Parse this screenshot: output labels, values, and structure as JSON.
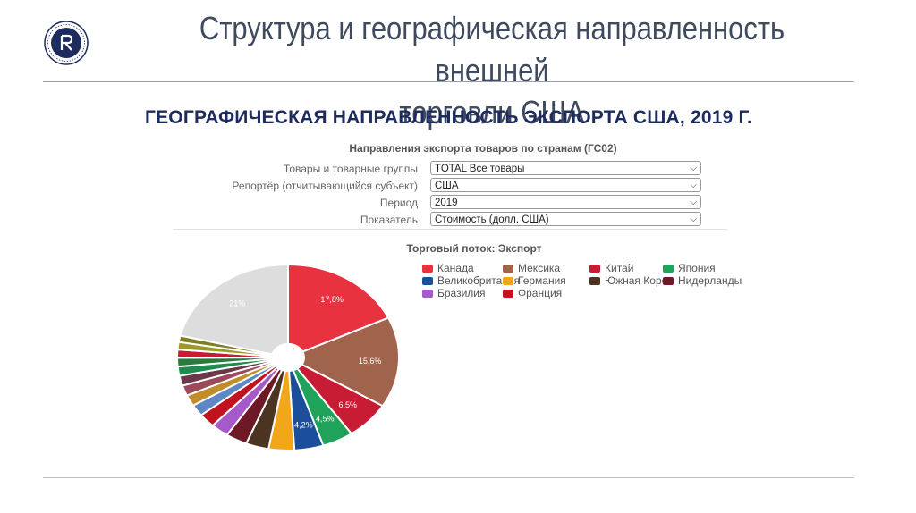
{
  "header": {
    "title_line1": "Структура и географическая направленность внешней",
    "title_line2": "торговли США"
  },
  "subtitle": "ГЕОГРАФИЧЕСКАЯ НАПРАВЛЕННОСТЬ ЭКСПОРТА США, 2019 Г.",
  "panel": {
    "title": "Направления экспорта товаров по странам (ГС02)",
    "filters": [
      {
        "label": "Товары и товарные группы",
        "value": "TOTAL Все товары"
      },
      {
        "label": "Репортёр (отчитывающийся субъект)",
        "value": "США"
      },
      {
        "label": "Период",
        "value": "2019"
      },
      {
        "label": "Показатель",
        "value": "Стоимость (долл. США)"
      }
    ]
  },
  "chart_data": {
    "type": "pie",
    "title": "Торговый поток: Экспорт",
    "legend_position": "top-right",
    "slices": [
      {
        "name": "Канада",
        "value": 17.8,
        "label": "17,8%",
        "color": "#e8323f"
      },
      {
        "name": "Мексика",
        "value": 15.6,
        "label": "15,6%",
        "color": "#a0634c"
      },
      {
        "name": "Китай",
        "value": 6.5,
        "label": "6,5%",
        "color": "#c81b34"
      },
      {
        "name": "Япония",
        "value": 4.5,
        "label": "4,5%",
        "color": "#1fa35a"
      },
      {
        "name": "Великобритания",
        "value": 4.2,
        "label": "4,2%",
        "color": "#1b4f9b"
      },
      {
        "name": "Германия",
        "value": 3.7,
        "label": "",
        "color": "#f2a71b"
      },
      {
        "name": "Южная Корея",
        "value": 3.3,
        "label": "",
        "color": "#4b3422"
      },
      {
        "name": "Нидерланды",
        "value": 3.1,
        "label": "",
        "color": "#6e1a26"
      },
      {
        "name": "Бразилия",
        "value": 2.6,
        "label": "",
        "color": "#a659c8"
      },
      {
        "name": "Франция",
        "value": 2.4,
        "label": "",
        "color": "#c1121f"
      },
      {
        "name": "",
        "value": 2.0,
        "label": "",
        "color": "#5f87c6"
      },
      {
        "name": "",
        "value": 1.9,
        "label": "",
        "color": "#bf8d2b"
      },
      {
        "name": "",
        "value": 1.8,
        "label": "",
        "color": "#9c4a5a"
      },
      {
        "name": "",
        "value": 1.7,
        "label": "",
        "color": "#6a3848"
      },
      {
        "name": "",
        "value": 1.6,
        "label": "",
        "color": "#1e8c4e"
      },
      {
        "name": "",
        "value": 1.5,
        "label": "",
        "color": "#2a7a3c"
      },
      {
        "name": "",
        "value": 1.4,
        "label": "",
        "color": "#c81b34"
      },
      {
        "name": "",
        "value": 1.3,
        "label": "",
        "color": "#9a9a2a"
      },
      {
        "name": "",
        "value": 1.1,
        "label": "",
        "color": "#7e7e24"
      },
      {
        "name": "",
        "value": 21.0,
        "label": "21%",
        "color": "#dddddd"
      }
    ]
  }
}
